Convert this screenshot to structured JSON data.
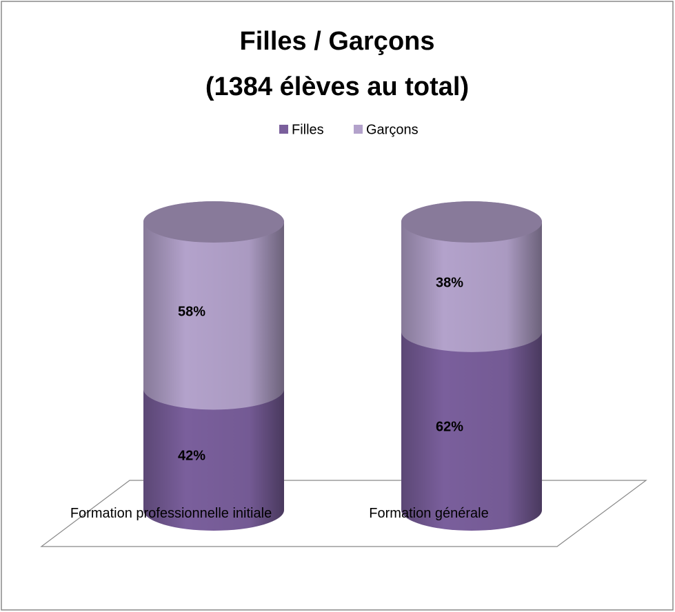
{
  "chart_data": {
    "type": "cylinder-stacked",
    "title": [
      "Filles / Garçons",
      "(1384 élèves au total)"
    ],
    "categories": [
      "Formation professionnelle initiale",
      "Formation générale"
    ],
    "series": [
      {
        "name": "Filles",
        "color": "#7a5f9c",
        "values": [
          42,
          62
        ],
        "value_labels": [
          "42%",
          "62%"
        ]
      },
      {
        "name": "Garçons",
        "color": "#b3a2cb",
        "values": [
          58,
          38
        ],
        "value_labels": [
          "58%",
          "38%"
        ]
      }
    ],
    "legend": "top"
  }
}
